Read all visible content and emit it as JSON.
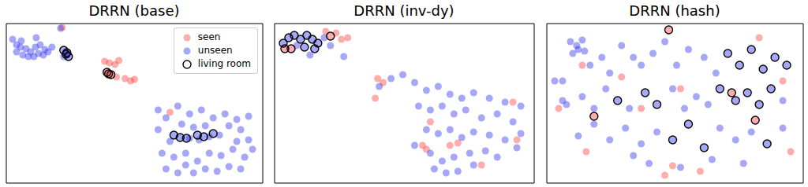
{
  "chart_data": [
    {
      "type": "scatter",
      "title": "DRRN (base)",
      "xlim": [
        0,
        326
      ],
      "ylim": [
        0,
        203
      ],
      "tick_labels": false,
      "legend": "upper right",
      "series": [
        {
          "name": "seen",
          "color": "#ff3030",
          "marker": "o",
          "x": [
            71,
            125,
            131,
            138,
            143,
            128,
            130,
            133,
            140,
            151,
            158,
            163,
            208
          ],
          "y": [
            198,
            155,
            153,
            151,
            156,
            141,
            139,
            138,
            135,
            133,
            130,
            132,
            90
          ]
        },
        {
          "name": "unseen",
          "color": "#2222ee",
          "marker": "o",
          "x": [
            8,
            13,
            18,
            25,
            31,
            37,
            43,
            49,
            13,
            21,
            28,
            35,
            41,
            47,
            53,
            19,
            38,
            58,
            69,
            73,
            77,
            73,
            79,
            76,
            193,
            203,
            218,
            233,
            248,
            263,
            278,
            293,
            308,
            223,
            238,
            253,
            283,
            298,
            193,
            208,
            221,
            233,
            245,
            258,
            271,
            293,
            308,
            198,
            213,
            228,
            243,
            258,
            273,
            288,
            303,
            313,
            203,
            218,
            238,
            253,
            268,
            283,
            298,
            228,
            213,
            229,
            243,
            251,
            263
          ],
          "y": [
            183,
            176,
            173,
            171,
            167,
            173,
            176,
            170,
            167,
            163,
            161,
            161,
            165,
            163,
            167,
            181,
            185,
            173,
            197,
            169,
            166,
            161,
            161,
            164,
            93,
            83,
            98,
            88,
            93,
            83,
            88,
            81,
            85,
            75,
            71,
            73,
            73,
            68,
            68,
            53,
            58,
            57,
            55,
            59,
            61,
            53,
            55,
            38,
            33,
            38,
            28,
            38,
            35,
            43,
            33,
            43,
            18,
            13,
            13,
            18,
            15,
            21,
            18,
            23,
            61,
            57,
            61,
            59,
            63
          ]
        },
        {
          "name": "living room",
          "color": "#000000",
          "marker": "hollow",
          "x": [
            73,
            77,
            76,
            79,
            128,
            133,
            130,
            213,
            221,
            229,
            243,
            251,
            263
          ],
          "y": [
            169,
            166,
            164,
            161,
            141,
            138,
            139,
            61,
            58,
            57,
            61,
            59,
            63
          ]
        }
      ]
    },
    {
      "type": "scatter",
      "title": "DRRN (inv-dy)",
      "xlim": [
        0,
        330
      ],
      "ylim": [
        0,
        203
      ],
      "tick_labels": false,
      "series": [
        {
          "name": "seen",
          "color": "#ff3030",
          "marker": "o",
          "x": [
            13,
            21,
            65,
            78,
            85,
            93,
            71,
            131,
            138,
            128,
            188,
            193,
            223,
            233,
            303,
            308,
            198,
            263
          ],
          "y": [
            171,
            171,
            193,
            191,
            183,
            185,
            187,
            133,
            128,
            108,
            48,
            43,
            48,
            51,
            103,
            55,
            78,
            23
          ]
        },
        {
          "name": "unseen",
          "color": "#2222ee",
          "marker": "o",
          "x": [
            11,
            18,
            25,
            33,
            41,
            48,
            55,
            28,
            38,
            51,
            63,
            45,
            71,
            88,
            133,
            148,
            163,
            178,
            193,
            208,
            223,
            238,
            253,
            273,
            293,
            313,
            183,
            198,
            213,
            228,
            243,
            263,
            283,
            303,
            193,
            208,
            223,
            238,
            253,
            273,
            293,
            313,
            178,
            198,
            213,
            228,
            248,
            268,
            283,
            203,
            218,
            233,
            253,
            308
          ],
          "y": [
            178,
            185,
            188,
            183,
            188,
            183,
            178,
            175,
            173,
            171,
            185,
            163,
            175,
            161,
            123,
            133,
            138,
            128,
            118,
            123,
            113,
            108,
            115,
            108,
            103,
            98,
            98,
            93,
            98,
            88,
            93,
            83,
            88,
            78,
            68,
            63,
            68,
            58,
            65,
            61,
            55,
            63,
            48,
            38,
            28,
            33,
            38,
            41,
            33,
            18,
            13,
            15,
            23,
            45
          ]
        },
        {
          "name": "living room",
          "color": "#000000",
          "marker": "hollow",
          "x": [
            11,
            18,
            25,
            33,
            41,
            13,
            21,
            48,
            55,
            38,
            51,
            71
          ],
          "y": [
            178,
            185,
            188,
            183,
            188,
            171,
            171,
            183,
            178,
            173,
            171,
            187
          ]
        }
      ]
    },
    {
      "type": "scatter",
      "title": "DRRN (hash)",
      "xlim": [
        0,
        326
      ],
      "ylim": [
        0,
        203
      ],
      "tick_labels": false,
      "series": [
        {
          "name": "seen",
          "color": "#ff3030",
          "marker": "o",
          "x": [
            60,
            95,
            155,
            270,
            15,
            50,
            170,
            150,
            160,
            265,
            300,
            235,
            45,
            120,
            310,
            195
          ],
          "y": [
            85,
            135,
            195,
            185,
            95,
            40,
            120,
            10,
            22,
            80,
            130,
            115,
            150,
            95,
            40,
            15
          ]
        },
        {
          "name": "unseen",
          "color": "#2222ee",
          "marker": "o",
          "x": [
            30,
            38,
            45,
            40,
            33,
            48,
            20,
            55,
            70,
            80,
            95,
            110,
            120,
            135,
            150,
            165,
            180,
            200,
            215,
            230,
            245,
            260,
            275,
            290,
            305,
            25,
            45,
            60,
            75,
            90,
            105,
            125,
            140,
            160,
            175,
            190,
            205,
            220,
            240,
            255,
            270,
            285,
            300,
            40,
            60,
            80,
            100,
            120,
            140,
            160,
            180,
            200,
            220,
            240,
            260,
            280,
            300,
            130,
            170,
            210,
            250,
            110,
            20,
            10
          ],
          "y": [
            180,
            175,
            182,
            170,
            165,
            168,
            130,
            150,
            160,
            140,
            175,
            160,
            150,
            165,
            180,
            150,
            170,
            160,
            140,
            165,
            150,
            170,
            145,
            160,
            150,
            100,
            110,
            95,
            120,
            105,
            95,
            115,
            100,
            120,
            95,
            110,
            100,
            120,
            105,
            115,
            100,
            120,
            105,
            60,
            75,
            55,
            70,
            50,
            65,
            55,
            75,
            45,
            70,
            55,
            65,
            50,
            70,
            25,
            20,
            30,
            25,
            35,
            105,
            130
          ]
        },
        {
          "name": "living room",
          "color": "#000000",
          "marker": "hollow",
          "x": [
            60,
            155,
            230,
            245,
            260,
            290,
            305,
            275,
            220,
            240,
            255,
            285,
            160,
            180,
            200,
            125,
            140,
            90,
            270,
            235,
            265,
            280
          ],
          "y": [
            85,
            195,
            165,
            150,
            170,
            160,
            150,
            145,
            120,
            105,
            115,
            120,
            55,
            75,
            45,
            115,
            100,
            105,
            100,
            115,
            80,
            50
          ]
        }
      ]
    }
  ]
}
